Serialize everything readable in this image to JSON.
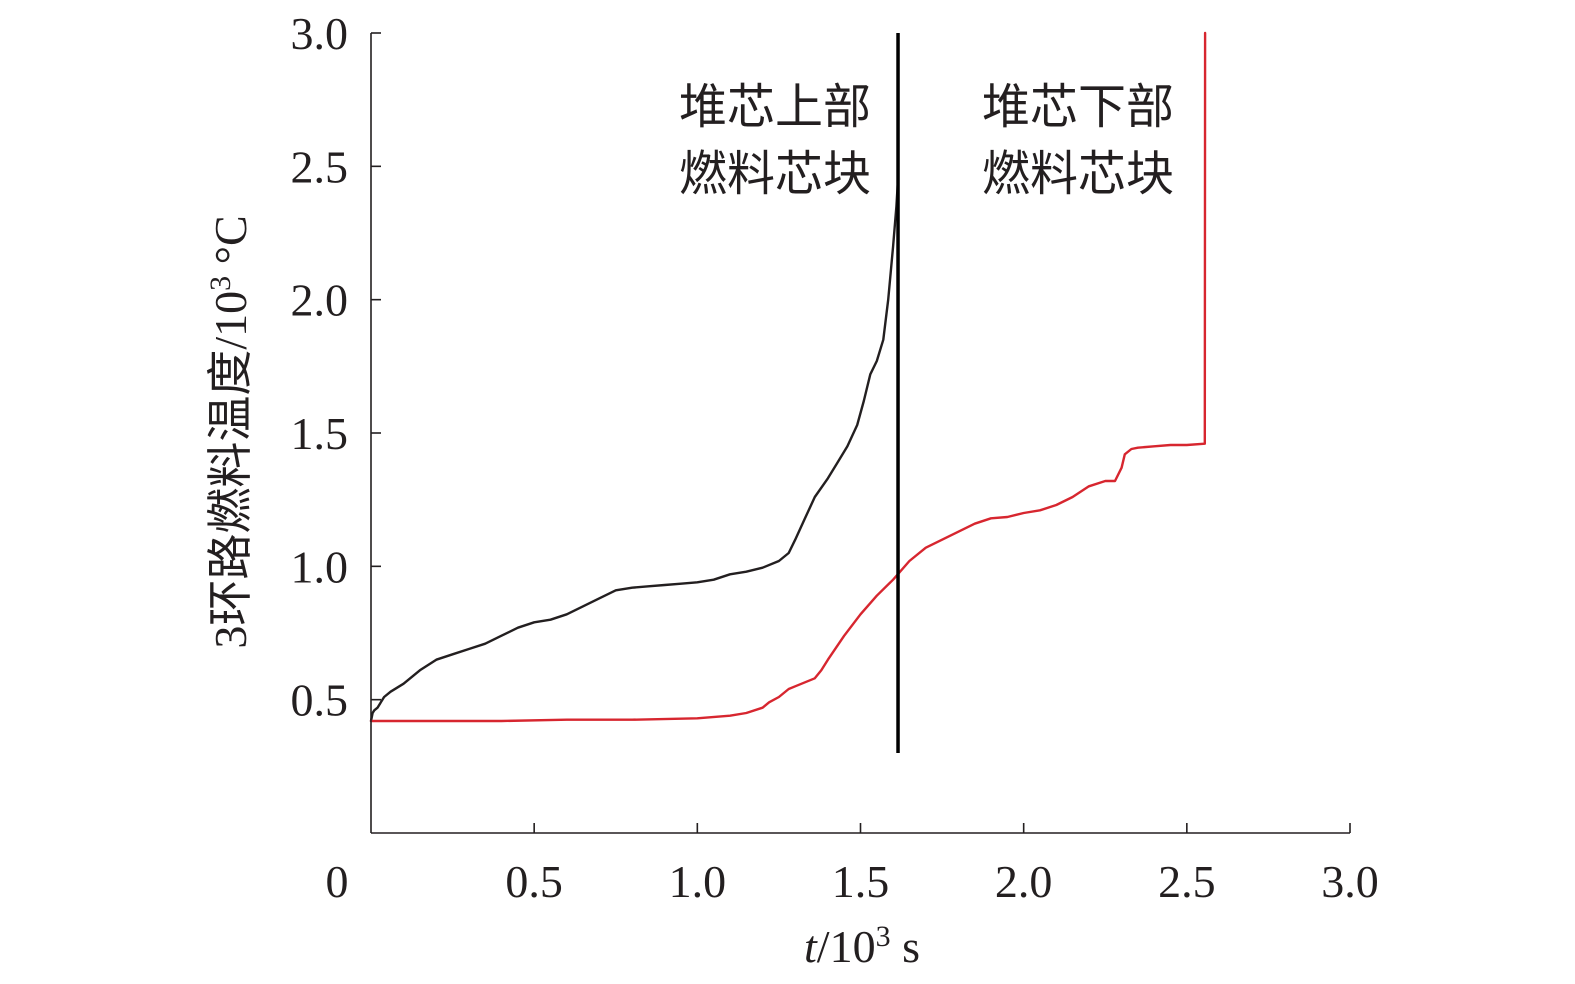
{
  "chart_data": {
    "type": "line",
    "xlabel": "t/10³ s",
    "xlabel_var": "t",
    "xlabel_rest": "/10",
    "xlabel_sup": "3",
    "xlabel_unit": " s",
    "ylabel": "3环路燃料温度/10³ °C",
    "ylabel_main": "3环路燃料温度/10",
    "ylabel_sup": "3",
    "ylabel_unit": " °C",
    "xlim": [
      0,
      3.0
    ],
    "ylim": [
      0,
      3.0
    ],
    "x_ticks": [
      0,
      0.5,
      1.0,
      1.5,
      2.0,
      2.5,
      3.0
    ],
    "x_tick_labels": [
      "0",
      "0.5",
      "1.0",
      "1.5",
      "2.0",
      "2.5",
      "3.0"
    ],
    "y_ticks": [
      0.5,
      1.0,
      1.5,
      2.0,
      2.5,
      3.0
    ],
    "y_tick_labels": [
      "0.5",
      "1.0",
      "1.5",
      "2.0",
      "2.5",
      "3.0"
    ],
    "grid": false,
    "divider": {
      "x": 1.615,
      "y_range": [
        0.3,
        3.0
      ],
      "color": "#000000"
    },
    "annotations": [
      {
        "lines": [
          "堆芯上部",
          "燃料芯块"
        ]
      },
      {
        "lines": [
          "堆芯下部",
          "燃料芯块"
        ]
      }
    ],
    "series": [
      {
        "color": "#231f20",
        "points": [
          [
            0.0,
            0.42
          ],
          [
            0.005,
            0.45
          ],
          [
            0.01,
            0.46
          ],
          [
            0.02,
            0.47
          ],
          [
            0.04,
            0.51
          ],
          [
            0.06,
            0.53
          ],
          [
            0.1,
            0.56
          ],
          [
            0.15,
            0.61
          ],
          [
            0.2,
            0.65
          ],
          [
            0.25,
            0.67
          ],
          [
            0.3,
            0.69
          ],
          [
            0.35,
            0.71
          ],
          [
            0.4,
            0.74
          ],
          [
            0.45,
            0.77
          ],
          [
            0.5,
            0.79
          ],
          [
            0.55,
            0.8
          ],
          [
            0.6,
            0.82
          ],
          [
            0.65,
            0.85
          ],
          [
            0.7,
            0.88
          ],
          [
            0.75,
            0.91
          ],
          [
            0.8,
            0.92
          ],
          [
            0.85,
            0.925
          ],
          [
            0.9,
            0.93
          ],
          [
            0.95,
            0.935
          ],
          [
            1.0,
            0.94
          ],
          [
            1.05,
            0.95
          ],
          [
            1.1,
            0.97
          ],
          [
            1.15,
            0.98
          ],
          [
            1.2,
            0.995
          ],
          [
            1.25,
            1.02
          ],
          [
            1.28,
            1.05
          ],
          [
            1.3,
            1.1
          ],
          [
            1.33,
            1.18
          ],
          [
            1.36,
            1.26
          ],
          [
            1.4,
            1.33
          ],
          [
            1.43,
            1.39
          ],
          [
            1.46,
            1.45
          ],
          [
            1.49,
            1.53
          ],
          [
            1.51,
            1.62
          ],
          [
            1.53,
            1.72
          ],
          [
            1.55,
            1.77
          ],
          [
            1.57,
            1.85
          ],
          [
            1.585,
            2.0
          ],
          [
            1.6,
            2.2
          ],
          [
            1.61,
            2.35
          ],
          [
            1.615,
            2.45
          ]
        ]
      },
      {
        "color": "#d7262f",
        "points": [
          [
            0.0,
            0.42
          ],
          [
            0.2,
            0.42
          ],
          [
            0.4,
            0.42
          ],
          [
            0.6,
            0.425
          ],
          [
            0.8,
            0.425
          ],
          [
            1.0,
            0.43
          ],
          [
            1.1,
            0.44
          ],
          [
            1.15,
            0.45
          ],
          [
            1.2,
            0.47
          ],
          [
            1.22,
            0.49
          ],
          [
            1.25,
            0.51
          ],
          [
            1.28,
            0.54
          ],
          [
            1.3,
            0.55
          ],
          [
            1.33,
            0.565
          ],
          [
            1.36,
            0.58
          ],
          [
            1.38,
            0.61
          ],
          [
            1.4,
            0.65
          ],
          [
            1.45,
            0.74
          ],
          [
            1.5,
            0.82
          ],
          [
            1.55,
            0.89
          ],
          [
            1.6,
            0.95
          ],
          [
            1.65,
            1.02
          ],
          [
            1.7,
            1.07
          ],
          [
            1.75,
            1.1
          ],
          [
            1.8,
            1.13
          ],
          [
            1.85,
            1.16
          ],
          [
            1.9,
            1.18
          ],
          [
            1.95,
            1.185
          ],
          [
            2.0,
            1.2
          ],
          [
            2.05,
            1.21
          ],
          [
            2.1,
            1.23
          ],
          [
            2.15,
            1.26
          ],
          [
            2.2,
            1.3
          ],
          [
            2.25,
            1.32
          ],
          [
            2.28,
            1.32
          ],
          [
            2.3,
            1.37
          ],
          [
            2.31,
            1.42
          ],
          [
            2.33,
            1.44
          ],
          [
            2.35,
            1.445
          ],
          [
            2.4,
            1.45
          ],
          [
            2.45,
            1.455
          ],
          [
            2.5,
            1.455
          ],
          [
            2.555,
            1.46
          ],
          [
            2.556,
            3.0
          ]
        ]
      }
    ]
  }
}
